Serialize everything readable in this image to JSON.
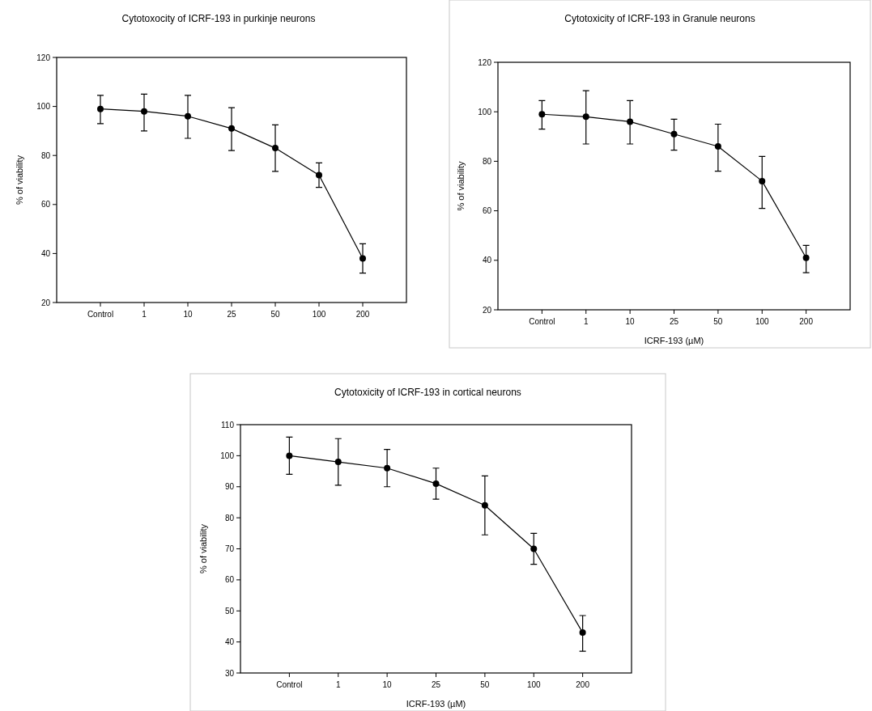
{
  "chart_data": [
    {
      "type": "line",
      "title": "Cytotoxocity of ICRF-193 in purkinje neurons",
      "ylabel": "% of viability",
      "categories": [
        "Control",
        "1",
        "10",
        "25",
        "50",
        "100",
        "200"
      ],
      "series": [
        {
          "color": "#000000",
          "values": [
            99,
            98,
            96,
            91,
            83,
            72,
            38
          ],
          "errors": [
            [
              93,
              104.5
            ],
            [
              90,
              105
            ],
            [
              87,
              104.5
            ],
            [
              82,
              99.5
            ],
            [
              73.5,
              92.5
            ],
            [
              67,
              77
            ],
            [
              32,
              44
            ]
          ]
        }
      ],
      "ylim": [
        20,
        120
      ],
      "yticks": [
        20,
        40,
        60,
        80,
        100,
        120
      ],
      "marker": "circle",
      "grid": false
    },
    {
      "type": "line",
      "title": "Cytotoxicity of ICRF-193 in Granule neurons",
      "xlabel": "ICRF-193 (µM)",
      "ylabel": "% of viability",
      "categories": [
        "Control",
        "1",
        "10",
        "25",
        "50",
        "100",
        "200"
      ],
      "series": [
        {
          "color": "#000000",
          "values": [
            99,
            98,
            96,
            91,
            86,
            72,
            41
          ],
          "errors": [
            [
              93,
              104.5
            ],
            [
              87,
              108.5
            ],
            [
              87,
              104.5
            ],
            [
              84.5,
              97
            ],
            [
              76,
              95
            ],
            [
              61,
              82
            ],
            [
              35,
              46
            ]
          ]
        }
      ],
      "ylim": [
        20,
        120
      ],
      "yticks": [
        20,
        40,
        60,
        80,
        100,
        120
      ],
      "marker": "circle",
      "grid": false
    },
    {
      "type": "line",
      "title": "Cytotoxicity of ICRF-193 in cortical neurons",
      "xlabel": "ICRF-193 (µM)",
      "ylabel": "% of viability",
      "categories": [
        "Control",
        "1",
        "10",
        "25",
        "50",
        "100",
        "200"
      ],
      "series": [
        {
          "color": "#000000",
          "values": [
            100,
            98,
            96,
            91,
            84,
            70,
            43
          ],
          "errors": [
            [
              94,
              106
            ],
            [
              90.5,
              105.5
            ],
            [
              90,
              102
            ],
            [
              86,
              96
            ],
            [
              74.5,
              93.5
            ],
            [
              65,
              75
            ],
            [
              37,
              48.5
            ]
          ]
        }
      ],
      "ylim": [
        30,
        110
      ],
      "yticks": [
        30,
        40,
        50,
        60,
        70,
        80,
        90,
        100,
        110
      ],
      "marker": "circle",
      "grid": false
    }
  ]
}
